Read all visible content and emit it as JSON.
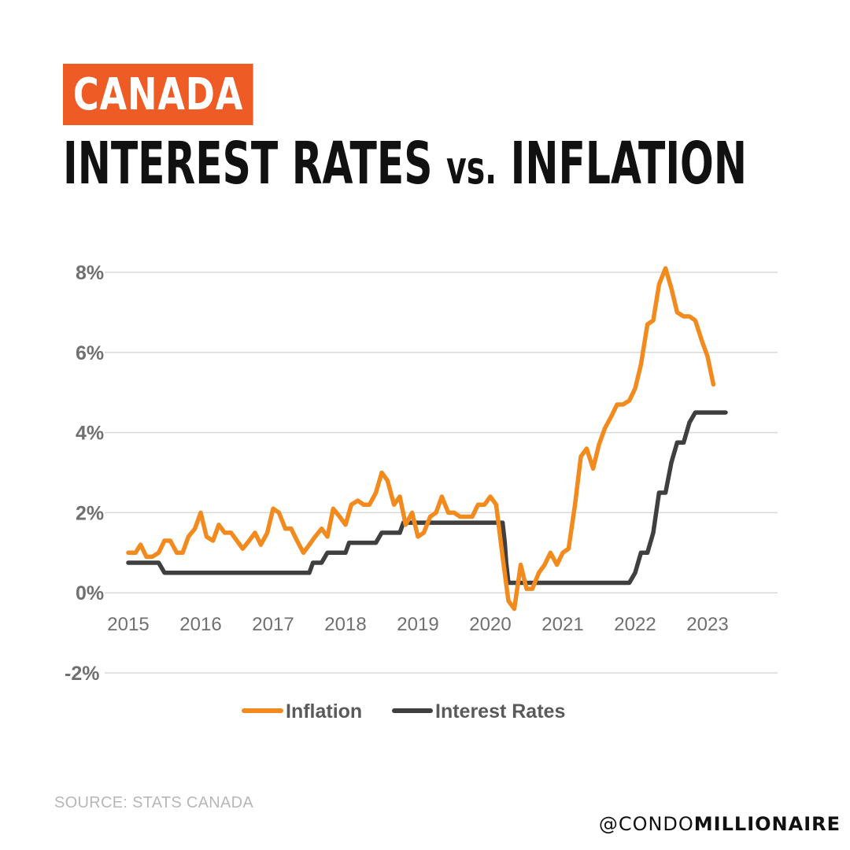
{
  "header": {
    "tag": "CANADA",
    "title_part1": "INTEREST RATES ",
    "title_vs": "vs.",
    "title_part2": " INFLATION"
  },
  "footer": {
    "source": "SOURCE: STATS CANADA",
    "handle_prefix": "@CONDO",
    "handle_suffix": "MILLIONAIRE"
  },
  "colors": {
    "brand": "#ef5b24",
    "inflation": "#f28a1e",
    "interest_rates": "#3f3f3f",
    "grid": "#d9d9d9",
    "tick": "#707070"
  },
  "chart_data": {
    "type": "line",
    "ylim": [
      -2,
      8
    ],
    "xlim": [
      2015,
      2024
    ],
    "y_ticks": [
      8,
      6,
      4,
      2,
      0,
      -2
    ],
    "y_tick_labels": [
      "8%",
      "6%",
      "4%",
      "2%",
      "0%",
      "-2%"
    ],
    "x_ticks": [
      2015,
      2016,
      2017,
      2018,
      2019,
      2020,
      2021,
      2022,
      2023
    ],
    "x_tick_labels": [
      "2015",
      "2016",
      "2017",
      "2018",
      "2019",
      "2020",
      "2021",
      "2022",
      "2023"
    ],
    "grid": true,
    "legend": "bottom",
    "series": [
      {
        "name": "Inflation",
        "x": [
          2015.0,
          2015.1,
          2015.17,
          2015.25,
          2015.33,
          2015.42,
          2015.5,
          2015.58,
          2015.67,
          2015.75,
          2015.83,
          2015.92,
          2016.0,
          2016.08,
          2016.17,
          2016.25,
          2016.33,
          2016.42,
          2016.5,
          2016.58,
          2016.67,
          2016.75,
          2016.83,
          2016.92,
          2017.0,
          2017.08,
          2017.17,
          2017.25,
          2017.33,
          2017.42,
          2017.5,
          2017.58,
          2017.67,
          2017.75,
          2017.83,
          2017.92,
          2018.0,
          2018.08,
          2018.17,
          2018.25,
          2018.33,
          2018.42,
          2018.5,
          2018.58,
          2018.67,
          2018.75,
          2018.83,
          2018.92,
          2019.0,
          2019.08,
          2019.17,
          2019.25,
          2019.33,
          2019.42,
          2019.5,
          2019.58,
          2019.67,
          2019.75,
          2019.83,
          2019.92,
          2020.0,
          2020.08,
          2020.17,
          2020.25,
          2020.33,
          2020.42,
          2020.5,
          2020.58,
          2020.67,
          2020.75,
          2020.83,
          2020.92,
          2021.0,
          2021.08,
          2021.17,
          2021.25,
          2021.33,
          2021.42,
          2021.5,
          2021.58,
          2021.67,
          2021.75,
          2021.83,
          2021.92,
          2022.0,
          2022.08,
          2022.17,
          2022.25,
          2022.33,
          2022.42,
          2022.5,
          2022.58,
          2022.67,
          2022.75,
          2022.83,
          2022.92,
          2023.0,
          2023.08
        ],
        "values": [
          1.0,
          1.0,
          1.2,
          0.9,
          0.9,
          1.0,
          1.3,
          1.3,
          1.0,
          1.0,
          1.4,
          1.6,
          2.0,
          1.4,
          1.3,
          1.7,
          1.5,
          1.5,
          1.3,
          1.1,
          1.3,
          1.5,
          1.2,
          1.5,
          2.1,
          2.0,
          1.6,
          1.6,
          1.3,
          1.0,
          1.2,
          1.4,
          1.6,
          1.4,
          2.1,
          1.9,
          1.7,
          2.2,
          2.3,
          2.2,
          2.2,
          2.5,
          3.0,
          2.8,
          2.2,
          2.4,
          1.7,
          2.0,
          1.4,
          1.5,
          1.9,
          2.0,
          2.4,
          2.0,
          2.0,
          1.9,
          1.9,
          1.9,
          2.2,
          2.2,
          2.4,
          2.2,
          0.9,
          -0.2,
          -0.4,
          0.7,
          0.1,
          0.1,
          0.5,
          0.7,
          1.0,
          0.7,
          1.0,
          1.1,
          2.2,
          3.4,
          3.6,
          3.1,
          3.7,
          4.1,
          4.4,
          4.7,
          4.7,
          4.8,
          5.1,
          5.7,
          6.7,
          6.8,
          7.7,
          8.1,
          7.6,
          7.0,
          6.9,
          6.9,
          6.8,
          6.3,
          5.9,
          5.2
        ]
      },
      {
        "name": "Interest Rates",
        "x": [
          2015.0,
          2015.42,
          2015.5,
          2017.5,
          2017.55,
          2017.67,
          2017.75,
          2018.0,
          2018.05,
          2018.42,
          2018.5,
          2018.75,
          2018.8,
          2020.17,
          2020.2,
          2020.22,
          2020.25,
          2021.92,
          2022.0,
          2022.08,
          2022.17,
          2022.25,
          2022.33,
          2022.42,
          2022.5,
          2022.58,
          2022.67,
          2022.75,
          2022.83,
          2022.92,
          2023.0,
          2023.08,
          2023.25
        ],
        "values": [
          0.75,
          0.75,
          0.5,
          0.5,
          0.75,
          0.75,
          1.0,
          1.0,
          1.25,
          1.25,
          1.5,
          1.5,
          1.75,
          1.75,
          1.25,
          0.75,
          0.25,
          0.25,
          0.5,
          1.0,
          1.0,
          1.5,
          2.5,
          2.5,
          3.25,
          3.75,
          3.75,
          4.25,
          4.5,
          4.5,
          4.5,
          4.5,
          4.5
        ]
      }
    ]
  }
}
